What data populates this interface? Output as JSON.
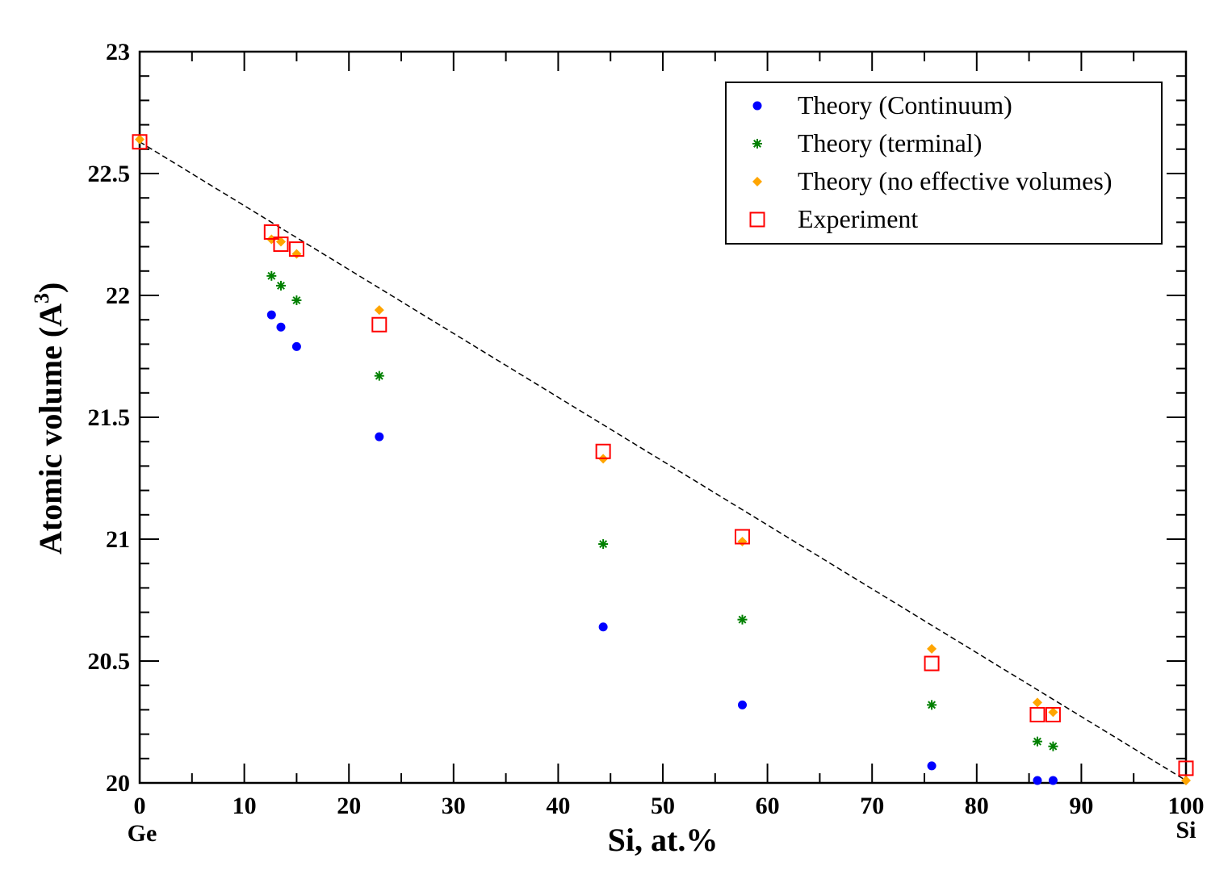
{
  "chart_data": {
    "type": "scatter",
    "title": "",
    "xlabel": "Si, at.%",
    "ylabel": "Atomic volume (A",
    "ylabel_sup": "3",
    "ylabel_close": ")",
    "xlim": [
      0,
      100
    ],
    "ylim": [
      20,
      23
    ],
    "x_ticks": [
      0,
      10,
      20,
      30,
      40,
      50,
      60,
      70,
      80,
      90,
      100
    ],
    "y_ticks": [
      20,
      20.5,
      21,
      21.5,
      22,
      22.5,
      23
    ],
    "x_tick_labels": [
      "0",
      "10",
      "20",
      "30",
      "40",
      "50",
      "60",
      "70",
      "80",
      "90",
      "100"
    ],
    "y_tick_labels": [
      "20",
      "20.5",
      "21",
      "21.5",
      "22",
      "22.5",
      "23"
    ],
    "x_end_labels": {
      "left": "Ge",
      "right": "Si"
    },
    "grid": false,
    "legend_position": "top-right",
    "reference_line": {
      "name": "Vegard line",
      "x": [
        0,
        100
      ],
      "y": [
        22.63,
        20.01
      ],
      "color": "#000000",
      "style": "dashed"
    },
    "series": [
      {
        "name": "Theory (Continuum)",
        "marker": "circle",
        "color": "#0000ff",
        "x": [
          12.6,
          13.5,
          15.0,
          22.9,
          44.3,
          57.6,
          75.7,
          85.8,
          87.3
        ],
        "y": [
          21.92,
          21.87,
          21.79,
          21.42,
          20.64,
          20.32,
          20.07,
          20.01,
          20.01
        ]
      },
      {
        "name": "Theory (terminal)",
        "marker": "asterisk",
        "color": "#008000",
        "x": [
          12.6,
          13.5,
          15.0,
          22.9,
          44.3,
          57.6,
          75.7,
          85.8,
          87.3
        ],
        "y": [
          22.08,
          22.04,
          21.98,
          21.67,
          20.98,
          20.67,
          20.32,
          20.17,
          20.15
        ]
      },
      {
        "name": "Theory (no effective volumes)",
        "marker": "diamond",
        "color": "#ffa500",
        "x": [
          0,
          12.6,
          13.5,
          15.0,
          22.9,
          44.3,
          57.6,
          75.7,
          85.8,
          87.3,
          100
        ],
        "y": [
          22.64,
          22.23,
          22.22,
          22.17,
          21.94,
          21.33,
          20.99,
          20.55,
          20.33,
          20.29,
          20.01
        ]
      },
      {
        "name": "Experiment",
        "marker": "square",
        "color": "#ff0000",
        "x": [
          0,
          12.6,
          13.5,
          15.0,
          22.9,
          44.3,
          57.6,
          75.7,
          85.8,
          87.3,
          100
        ],
        "y": [
          22.63,
          22.26,
          22.21,
          22.19,
          21.88,
          21.36,
          21.01,
          20.49,
          20.28,
          20.28,
          20.06
        ]
      }
    ]
  }
}
